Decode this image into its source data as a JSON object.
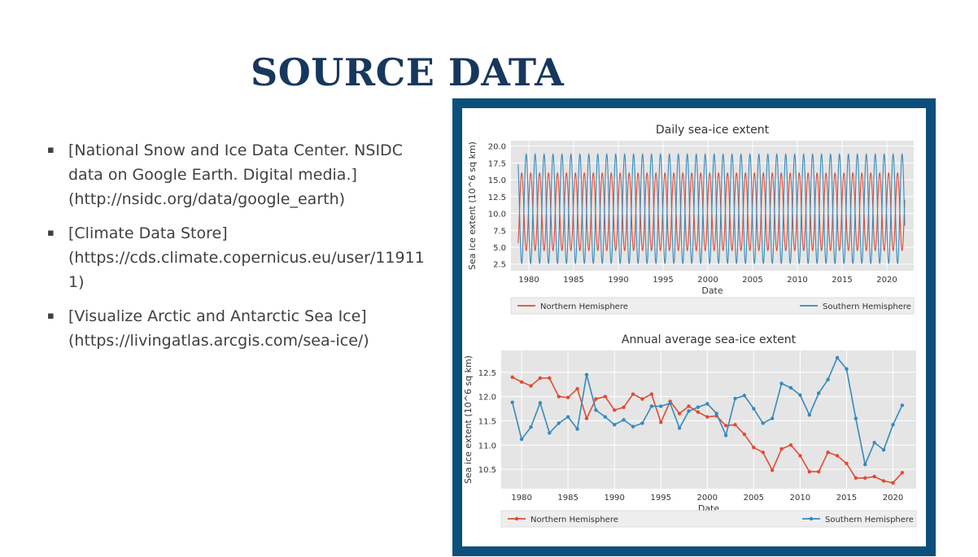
{
  "slide": {
    "title": "SOURCE DATA",
    "references": [
      "[National Snow and Ice Data Center. NSIDC data on Google Earth. Digital media.](http://nsidc.org/data/google_earth)",
      "[Climate Data Store](https://cds.climate.copernicus.eu/user/119111)",
      "[Visualize Arctic and Antarctic Sea Ice](https://livingatlas.arcgis.com/sea-ice/)"
    ],
    "bullet_symbol": "▪",
    "frame_color": "#0d4f7c",
    "title_color": "#17375e"
  },
  "chart_data": [
    {
      "type": "line",
      "title": "Daily sea-ice extent",
      "xlabel": "Date",
      "ylabel": "Sea ice extent (10^6 sq km)",
      "xlim": [
        1978,
        2023
      ],
      "ylim": [
        1.5,
        20.8
      ],
      "xticks": [
        1980,
        1985,
        1990,
        1995,
        2000,
        2005,
        2010,
        2015,
        2020
      ],
      "yticks": [
        2.5,
        5.0,
        7.5,
        10.0,
        12.5,
        15.0,
        17.5,
        20.0
      ],
      "grid": true,
      "legend": "bottom",
      "series": [
        {
          "name": "Northern Hemisphere",
          "color": "#e24a33",
          "seasonal_max": 16.0,
          "seasonal_min": 4.5,
          "start": 1978.8,
          "end": 2022.0
        },
        {
          "name": "Southern Hemisphere",
          "color": "#348abd",
          "seasonal_max": 18.8,
          "seasonal_min": 2.6,
          "start": 1978.8,
          "end": 2022.0
        }
      ]
    },
    {
      "type": "line",
      "title": "Annual average sea-ice extent",
      "xlabel": "Date",
      "ylabel": "Sea ice extent (10^6 sq km)",
      "xlim": [
        1977.8,
        2022.5
      ],
      "ylim": [
        10.1,
        12.95
      ],
      "xticks": [
        1980,
        1985,
        1990,
        1995,
        2000,
        2005,
        2010,
        2015,
        2020
      ],
      "yticks": [
        10.5,
        11.0,
        11.5,
        12.0,
        12.5
      ],
      "grid": true,
      "legend": "bottom",
      "x": [
        1979,
        1980,
        1981,
        1982,
        1983,
        1984,
        1985,
        1986,
        1987,
        1988,
        1989,
        1990,
        1991,
        1992,
        1993,
        1994,
        1995,
        1996,
        1997,
        1998,
        1999,
        2000,
        2001,
        2002,
        2003,
        2004,
        2005,
        2006,
        2007,
        2008,
        2009,
        2010,
        2011,
        2012,
        2013,
        2014,
        2015,
        2016,
        2017,
        2018,
        2019,
        2020,
        2021
      ],
      "series": [
        {
          "name": "Northern Hemisphere",
          "color": "#e24a33",
          "values": [
            12.4,
            12.3,
            12.22,
            12.38,
            12.38,
            12.0,
            11.98,
            12.16,
            11.55,
            11.95,
            12.0,
            11.72,
            11.78,
            12.05,
            11.95,
            12.05,
            11.47,
            11.9,
            11.65,
            11.8,
            11.68,
            11.58,
            11.6,
            11.4,
            11.42,
            11.22,
            10.95,
            10.85,
            10.48,
            10.92,
            11.0,
            10.78,
            10.45,
            10.45,
            10.85,
            10.78,
            10.62,
            10.32,
            10.32,
            10.35,
            10.26,
            10.22,
            10.43
          ]
        },
        {
          "name": "Southern Hemisphere",
          "color": "#348abd",
          "values": [
            11.88,
            11.12,
            11.37,
            11.87,
            11.25,
            11.45,
            11.58,
            11.33,
            12.45,
            11.72,
            11.58,
            11.42,
            11.52,
            11.38,
            11.45,
            11.8,
            11.8,
            11.86,
            11.35,
            11.7,
            11.78,
            11.85,
            11.65,
            11.2,
            11.96,
            12.02,
            11.75,
            11.45,
            11.55,
            12.27,
            12.18,
            12.03,
            11.62,
            12.07,
            12.35,
            12.8,
            12.57,
            11.55,
            10.6,
            11.05,
            10.9,
            11.42,
            11.82
          ]
        }
      ]
    }
  ]
}
